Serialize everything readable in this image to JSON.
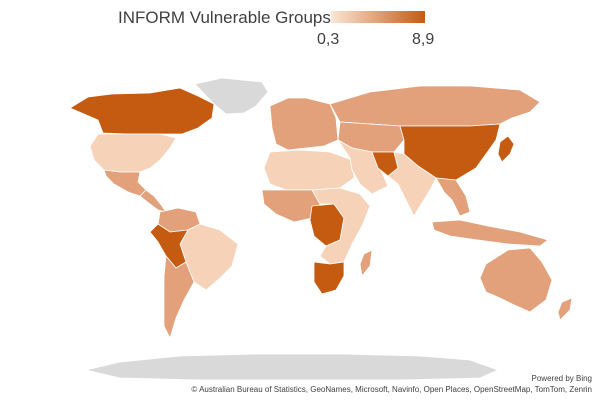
{
  "legend": {
    "title": "INFORM Vulnerable Groups",
    "min_label": "0,3",
    "max_label": "8,9",
    "color_low": "#fbe6d6",
    "color_high": "#c55a11"
  },
  "map": {
    "no_data_color": "#d9d9d9",
    "border_color": "#ffffff",
    "regions": [
      {
        "name": "Canada",
        "shade": "high"
      },
      {
        "name": "Greenland",
        "shade": "nodata"
      },
      {
        "name": "United States",
        "shade": "low"
      },
      {
        "name": "Mexico",
        "shade": "mid"
      },
      {
        "name": "Central America",
        "shade": "mid"
      },
      {
        "name": "Colombia",
        "shade": "mid"
      },
      {
        "name": "Brazil",
        "shade": "low"
      },
      {
        "name": "Peru",
        "shade": "high"
      },
      {
        "name": "Argentina",
        "shade": "mid"
      },
      {
        "name": "Russia",
        "shade": "mid"
      },
      {
        "name": "Europe",
        "shade": "mid"
      },
      {
        "name": "Kazakhstan",
        "shade": "mid"
      },
      {
        "name": "China",
        "shade": "high"
      },
      {
        "name": "India",
        "shade": "low"
      },
      {
        "name": "Iran",
        "shade": "high"
      },
      {
        "name": "Arabia",
        "shade": "low"
      },
      {
        "name": "North Africa",
        "shade": "low"
      },
      {
        "name": "West Africa",
        "shade": "mid"
      },
      {
        "name": "DR Congo",
        "shade": "high"
      },
      {
        "name": "East Africa",
        "shade": "low"
      },
      {
        "name": "South Africa",
        "shade": "high"
      },
      {
        "name": "Madagascar",
        "shade": "mid"
      },
      {
        "name": "Southeast Asia",
        "shade": "mid"
      },
      {
        "name": "Japan",
        "shade": "high"
      },
      {
        "name": "Indonesia",
        "shade": "mid"
      },
      {
        "name": "Australia",
        "shade": "mid"
      },
      {
        "name": "New Zealand",
        "shade": "mid"
      },
      {
        "name": "Antarctica",
        "shade": "nodata"
      }
    ]
  },
  "attribution": {
    "powered_by": "Powered by Bing",
    "sources": "© Australian Bureau of Statistics, GeoNames, Microsoft, Navinfo, Open Places, OpenStreetMap, TomTom, Zenrin"
  }
}
